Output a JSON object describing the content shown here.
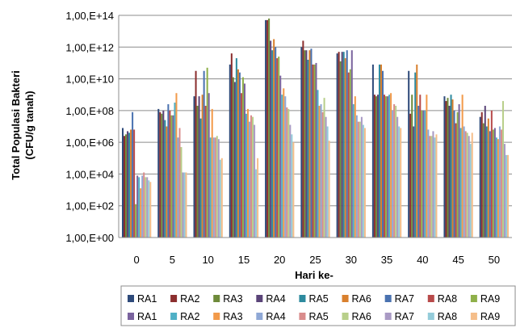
{
  "chart_data": {
    "type": "bar",
    "title": "",
    "xlabel": "Hari ke-",
    "ylabel_line1": "Total Populasi Bakteri",
    "ylabel_line2": "(CFU/g tanah)",
    "y_scale": "log10",
    "ylim_exp": [
      0,
      14
    ],
    "yticks": [
      "1,00,E+00",
      "1,00,E+02",
      "1,00,E+04",
      "1,00,E+06",
      "1,00,E+08",
      "1,00,E+10",
      "1,00,E+12",
      "1,00,E+14"
    ],
    "categories": [
      "0",
      "5",
      "10",
      "15",
      "20",
      "25",
      "30",
      "35",
      "40",
      "45",
      "50"
    ],
    "grid": "horizontal",
    "legend_position": "bottom",
    "series": [
      {
        "name": "RA1",
        "color": "#2E4A7A",
        "exp": [
          6.9,
          8.1,
          8.9,
          10.9,
          13.7,
          12.0,
          11.6,
          10.9,
          10.5,
          8.9,
          7.6
        ]
      },
      {
        "name": "RA2",
        "color": "#8B2E2E",
        "exp": [
          6.4,
          7.9,
          10.5,
          11.6,
          13.7,
          12.4,
          11.7,
          9.0,
          7.8,
          8.6,
          7.9
        ]
      },
      {
        "name": "RA3",
        "color": "#6E8A3A",
        "exp": [
          6.5,
          7.8,
          8.3,
          10.1,
          13.8,
          11.8,
          11.1,
          8.9,
          9.0,
          8.8,
          7.2
        ]
      },
      {
        "name": "RA4",
        "color": "#5A4478",
        "exp": [
          6.7,
          8.0,
          8.9,
          9.8,
          12.4,
          11.8,
          11.7,
          9.0,
          7.0,
          8.3,
          8.3
        ]
      },
      {
        "name": "RA5",
        "color": "#2D8A9E",
        "exp": [
          6.6,
          7.4,
          7.5,
          11.3,
          11.8,
          11.2,
          11.7,
          10.9,
          10.4,
          9.0,
          7.0
        ]
      },
      {
        "name": "RA6",
        "color": "#D9802E",
        "exp": [
          6.8,
          7.0,
          9.0,
          10.6,
          12.5,
          11.8,
          11.3,
          10.9,
          10.9,
          8.7,
          7.5
        ]
      },
      {
        "name": "RA7",
        "color": "#4A72B0",
        "exp": [
          7.9,
          8.4,
          10.5,
          10.4,
          12.0,
          11.9,
          11.8,
          10.5,
          8.3,
          8.0,
          6.7
        ]
      },
      {
        "name": "RA8",
        "color": "#B84A4A",
        "exp": [
          6.8,
          8.0,
          8.3,
          9.1,
          11.3,
          10.9,
          10.4,
          9.0,
          9.0,
          7.2,
          8.0
        ]
      },
      {
        "name": "RA9",
        "color": "#8FB04A",
        "exp": [
          2.1,
          7.7,
          10.7,
          10.1,
          11.4,
          10.9,
          10.6,
          8.9,
          8.0,
          7.9,
          6.8
        ]
      },
      {
        "name": "RA1",
        "color": "#7A639E",
        "exp": [
          3.9,
          7.7,
          9.1,
          9.7,
          10.2,
          11.0,
          11.8,
          8.9,
          8.0,
          8.4,
          6.9
        ]
      },
      {
        "name": "RA2",
        "color": "#4FB0C6",
        "exp": [
          3.8,
          8.5,
          6.3,
          7.8,
          9.0,
          9.3,
          8.4,
          9.0,
          8.0,
          6.9,
          6.3
        ]
      },
      {
        "name": "RA3",
        "color": "#F29A4A",
        "exp": [
          3.1,
          9.1,
          8.1,
          8.1,
          9.4,
          8.3,
          8.9,
          9.1,
          9.0,
          9.0,
          6.2
        ]
      },
      {
        "name": "RA4",
        "color": "#8FA8D6",
        "exp": [
          3.9,
          6.3,
          6.3,
          7.3,
          8.9,
          8.4,
          7.7,
          8.0,
          6.8,
          7.0,
          7.0
        ]
      },
      {
        "name": "RA5",
        "color": "#D98C8C",
        "exp": [
          4.1,
          6.9,
          6.3,
          7.7,
          8.2,
          7.9,
          7.3,
          8.4,
          6.4,
          6.7,
          6.8
        ]
      },
      {
        "name": "RA6",
        "color": "#B8CF8A",
        "exp": [
          3.8,
          5.7,
          6.4,
          7.6,
          8.1,
          8.8,
          7.3,
          8.3,
          6.4,
          6.6,
          8.6
        ]
      },
      {
        "name": "RA7",
        "color": "#A99AC4",
        "exp": [
          3.8,
          4.1,
          6.2,
          7.1,
          7.1,
          7.6,
          7.6,
          7.6,
          6.7,
          6.4,
          5.9
        ]
      },
      {
        "name": "RA8",
        "color": "#94CCDA",
        "exp": [
          3.6,
          4.1,
          4.9,
          4.3,
          6.5,
          7.0,
          7.1,
          7.0,
          6.3,
          5.9,
          5.2
        ]
      },
      {
        "name": "RA9",
        "color": "#F5BE8A",
        "exp": [
          3.5,
          4.1,
          5.0,
          5.0,
          6.0,
          6.1,
          6.9,
          6.9,
          6.5,
          6.6,
          5.2
        ]
      }
    ]
  }
}
